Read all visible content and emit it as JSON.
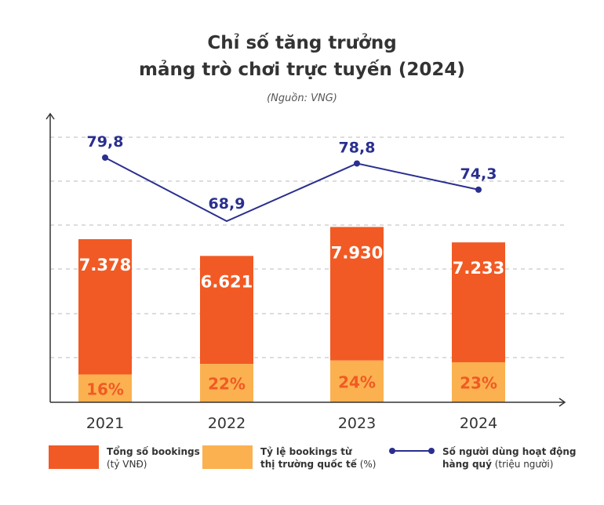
{
  "title_line1": "Chỉ số tăng trưởng",
  "title_line2": "mảng trò chơi trực tuyến (2024)",
  "source": "(Nguồn: VNG)",
  "colors": {
    "bookings": "#f15a24",
    "international": "#fbb150",
    "users": "#2a2f8f",
    "axis": "#333333",
    "grid": "#bbbbbb"
  },
  "legend": {
    "bookings_main": "Tổng số bookings",
    "bookings_sub": "(tỷ VNĐ)",
    "intl_main": "Tỷ lệ bookings từ",
    "intl_main2": "thị trường quốc tế",
    "intl_sub": "(%)",
    "users_main": "Số người dùng hoạt động",
    "users_main2": "hàng quý",
    "users_sub": "(triệu người)"
  },
  "chart_data": {
    "type": "bar",
    "categories": [
      "2021",
      "2022",
      "2023",
      "2024"
    ],
    "series": [
      {
        "name": "Tổng số bookings (tỷ VNĐ)",
        "type": "bar",
        "values": [
          7378,
          6621,
          7930,
          7233
        ],
        "labels": [
          "7.378",
          "6.621",
          "7.930",
          "7.233"
        ]
      },
      {
        "name": "Tỷ lệ bookings từ thị trường quốc tế (%)",
        "type": "bar",
        "values": [
          16,
          22,
          24,
          23
        ],
        "labels": [
          "16%",
          "22%",
          "24%",
          "23%"
        ]
      },
      {
        "name": "Số người dùng hoạt động hàng quý (triệu người)",
        "type": "line",
        "values": [
          79.8,
          68.9,
          78.8,
          74.3
        ],
        "labels": [
          "79,8",
          "68,9",
          "78,8",
          "74,3"
        ]
      }
    ],
    "grid": true
  }
}
